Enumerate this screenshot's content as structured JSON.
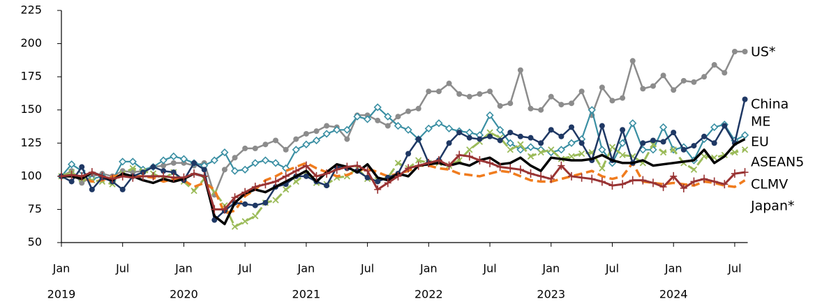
{
  "chart_data": {
    "type": "line",
    "categories": [
      "Jan",
      null,
      null,
      null,
      null,
      null,
      "Jul",
      null,
      null,
      null,
      null,
      null,
      "Jan",
      null,
      null,
      null,
      null,
      null,
      "Jul",
      null,
      null,
      null,
      null,
      null,
      "Jan",
      null,
      null,
      null,
      null,
      null,
      "Jul",
      null,
      null,
      null,
      null,
      null,
      "Jan",
      null,
      null,
      null,
      null,
      null,
      "Jul",
      null,
      null,
      null,
      null,
      null,
      "Jan",
      null,
      null,
      null,
      null,
      null,
      "Jul",
      null,
      null,
      null,
      null,
      null,
      "Jan",
      null,
      null,
      null,
      null,
      null,
      "Jul",
      null
    ],
    "years": [
      "2019",
      "2020",
      "2021",
      "2022",
      "2023",
      "2024"
    ],
    "ylim": [
      50,
      225
    ],
    "yticks": [
      50,
      75,
      100,
      125,
      150,
      175,
      200,
      225
    ],
    "series": [
      {
        "name": "US*",
        "color": "#8c8c8c",
        "marker": "circle",
        "dash": false,
        "values": [
          100,
          104,
          95,
          100,
          102,
          100,
          104,
          103,
          104,
          107,
          108,
          110,
          110,
          108,
          110,
          86,
          105,
          114,
          121,
          121,
          124,
          127,
          120,
          128,
          132,
          134,
          138,
          137,
          128,
          146,
          146,
          142,
          138,
          145,
          149,
          151,
          164,
          164,
          170,
          162,
          160,
          162,
          164,
          153,
          155,
          180,
          151,
          150,
          160,
          154,
          155,
          164,
          146,
          167,
          157,
          159,
          187,
          166,
          168,
          176,
          165,
          172,
          171,
          175,
          184,
          178,
          194,
          194
        ]
      },
      {
        "name": "China",
        "color": "#3a8fa3",
        "marker": "diamond",
        "dash": false,
        "values": [
          100,
          109,
          104,
          98,
          100,
          97,
          111,
          111,
          105,
          107,
          112,
          115,
          113,
          110,
          108,
          112,
          118,
          104,
          105,
          110,
          112,
          110,
          106,
          120,
          124,
          127,
          132,
          135,
          135,
          145,
          143,
          152,
          145,
          138,
          135,
          128,
          136,
          140,
          136,
          134,
          133,
          131,
          146,
          135,
          125,
          120,
          122,
          120,
          118,
          120,
          125,
          128,
          150,
          120,
          110,
          125,
          140,
          120,
          120,
          137,
          120,
          122,
          112,
          128,
          137,
          139,
          127,
          131
        ]
      },
      {
        "name": "ME",
        "color": "#1f3864",
        "marker": "circle",
        "dash": false,
        "values": [
          100,
          96,
          107,
          90,
          99,
          96,
          90,
          100,
          103,
          107,
          104,
          103,
          97,
          110,
          105,
          67,
          74,
          80,
          79,
          78,
          80,
          92,
          94,
          100,
          100,
          96,
          93,
          107,
          106,
          104,
          99,
          96,
          99,
          102,
          117,
          128,
          110,
          112,
          125,
          133,
          129,
          128,
          130,
          127,
          133,
          130,
          129,
          125,
          135,
          130,
          137,
          125,
          112,
          138,
          112,
          135,
          110,
          125,
          127,
          126,
          133,
          120,
          123,
          130,
          125,
          138,
          125,
          158
        ]
      },
      {
        "name": "EU",
        "color": "#000000",
        "marker": "none",
        "dash": false,
        "values": [
          100,
          100,
          98,
          103,
          100,
          97,
          102,
          100,
          97,
          95,
          98,
          96,
          98,
          102,
          100,
          70,
          64,
          80,
          87,
          90,
          88,
          92,
          96,
          100,
          104,
          96,
          103,
          109,
          107,
          103,
          109,
          99,
          97,
          102,
          100,
          108,
          109,
          110,
          108,
          110,
          108,
          112,
          114,
          109,
          110,
          114,
          108,
          104,
          114,
          113,
          112,
          112,
          113,
          116,
          112,
          110,
          110,
          112,
          108,
          109,
          110,
          111,
          112,
          120,
          110,
          115,
          124,
          128
        ]
      },
      {
        "name": "ASEAN5",
        "color": "#9bbb59",
        "marker": "cross",
        "dash": true,
        "values": [
          100,
          103,
          98,
          97,
          96,
          94,
          102,
          106,
          104,
          102,
          98,
          103,
          96,
          89,
          98,
          88,
          78,
          62,
          66,
          70,
          80,
          82,
          90,
          96,
          102,
          95,
          94,
          99,
          100,
          106,
          98,
          97,
          99,
          110,
          106,
          112,
          110,
          110,
          108,
          112,
          120,
          126,
          133,
          129,
          120,
          124,
          115,
          118,
          120,
          113,
          115,
          117,
          118,
          106,
          122,
          116,
          115,
          110,
          124,
          118,
          120,
          110,
          105,
          115,
          114,
          116,
          118,
          120
        ]
      },
      {
        "name": "CLMV",
        "color": "#993333",
        "marker": "plus",
        "dash": false,
        "values": [
          100,
          101,
          100,
          103,
          100,
          98,
          100,
          99,
          100,
          100,
          100,
          99,
          99,
          102,
          100,
          75,
          75,
          84,
          88,
          92,
          94,
          96,
          100,
          104,
          108,
          100,
          102,
          105,
          107,
          108,
          104,
          90,
          95,
          100,
          106,
          108,
          110,
          112,
          108,
          116,
          115,
          112,
          110,
          107,
          106,
          105,
          102,
          100,
          98,
          108,
          100,
          99,
          98,
          96,
          93,
          94,
          97,
          97,
          95,
          92,
          100,
          91,
          96,
          98,
          96,
          94,
          102,
          103
        ]
      },
      {
        "name": "Japan*",
        "color": "#f07c1e",
        "marker": "none",
        "dash": true,
        "values": [
          100,
          100,
          99,
          96,
          97,
          100,
          101,
          100,
          100,
          99,
          96,
          98,
          97,
          92,
          95,
          90,
          72,
          74,
          85,
          90,
          97,
          100,
          104,
          107,
          110,
          106,
          103,
          100,
          101,
          104,
          106,
          103,
          100,
          102,
          104,
          108,
          108,
          106,
          105,
          102,
          101,
          100,
          102,
          104,
          103,
          100,
          97,
          96,
          96,
          98,
          100,
          102,
          104,
          100,
          98,
          100,
          110,
          96,
          95,
          94,
          95,
          94,
          93,
          96,
          95,
          93,
          92,
          97
        ]
      }
    ]
  }
}
